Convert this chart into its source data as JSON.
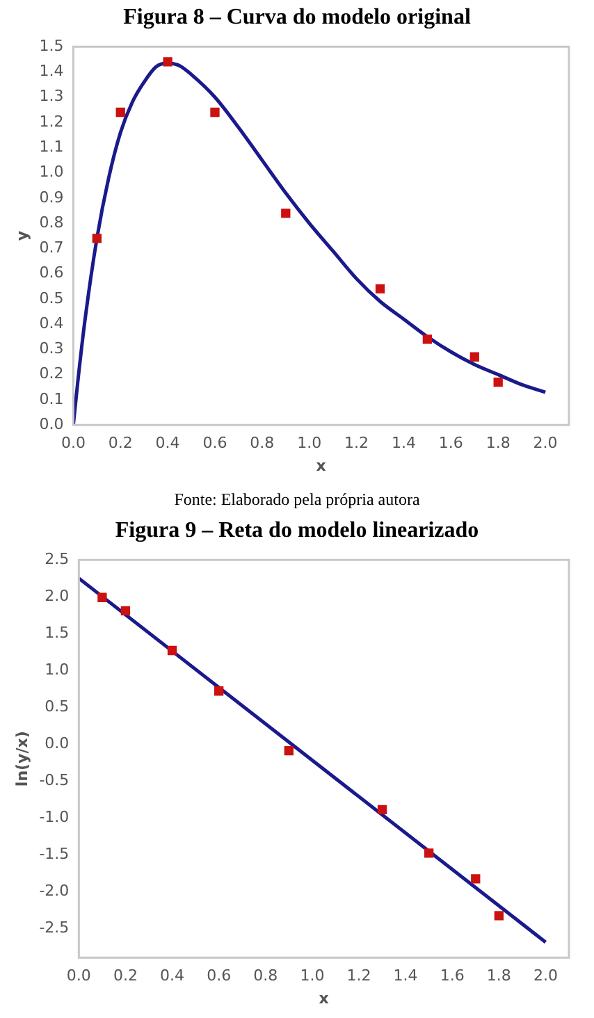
{
  "chart_data": [
    {
      "type": "scatter",
      "title": "Figura 8 – Curva do modelo original",
      "xlabel": "x",
      "ylabel": "y",
      "xlim": [
        0,
        2.1
      ],
      "ylim": [
        0,
        1.5
      ],
      "xticks": [
        {
          "value": 0,
          "label": "0.0"
        },
        {
          "value": 0.2,
          "label": "0.2"
        },
        {
          "value": 0.4,
          "label": "0.4"
        },
        {
          "value": 0.6,
          "label": "0.6"
        },
        {
          "value": 0.8,
          "label": "0.8"
        },
        {
          "value": 1,
          "label": "1.0"
        },
        {
          "value": 1.2,
          "label": "1.2"
        },
        {
          "value": 1.4,
          "label": "1.4"
        },
        {
          "value": 1.6,
          "label": "1.6"
        },
        {
          "value": 1.8,
          "label": "1.8"
        },
        {
          "value": 2,
          "label": "2.0"
        }
      ],
      "yticks": [
        {
          "value": 0,
          "label": "0.0"
        },
        {
          "value": 0.1,
          "label": "0.1"
        },
        {
          "value": 0.2,
          "label": "0.2"
        },
        {
          "value": 0.3,
          "label": "0.3"
        },
        {
          "value": 0.4,
          "label": "0.4"
        },
        {
          "value": 0.5,
          "label": "0.5"
        },
        {
          "value": 0.6,
          "label": "0.6"
        },
        {
          "value": 0.7,
          "label": "0.7"
        },
        {
          "value": 0.8,
          "label": "0.8"
        },
        {
          "value": 0.9,
          "label": "0.9"
        },
        {
          "value": 1,
          "label": "1.0"
        },
        {
          "value": 1.1,
          "label": "1.1"
        },
        {
          "value": 1.2,
          "label": "1.2"
        },
        {
          "value": 1.3,
          "label": "1.3"
        },
        {
          "value": 1.4,
          "label": "1.4"
        },
        {
          "value": 1.5,
          "label": "1.5"
        }
      ],
      "grid": false,
      "legend": false,
      "annotations": [
        "Fonte: Elaborado pela própria autora"
      ],
      "series": [
        {
          "type": "line",
          "color": "#1a1a8c",
          "marker": "none",
          "line_style": "solid",
          "x": [
            0,
            0.02,
            0.05,
            0.1,
            0.15,
            0.2,
            0.25,
            0.3,
            0.35,
            0.4,
            0.45,
            0.5,
            0.6,
            0.7,
            0.8,
            0.9,
            1.0,
            1.1,
            1.2,
            1.3,
            1.4,
            1.5,
            1.6,
            1.7,
            1.8,
            1.9,
            2.0
          ],
          "values": [
            0,
            0.18,
            0.42,
            0.74,
            0.98,
            1.16,
            1.28,
            1.36,
            1.42,
            1.435,
            1.425,
            1.39,
            1.3,
            1.18,
            1.05,
            0.92,
            0.8,
            0.69,
            0.58,
            0.49,
            0.42,
            0.35,
            0.29,
            0.24,
            0.2,
            0.16,
            0.13
          ]
        },
        {
          "type": "scatter",
          "color": "#cc1111",
          "marker": "square",
          "x": [
            0.1,
            0.2,
            0.4,
            0.6,
            0.9,
            1.3,
            1.5,
            1.7,
            1.8
          ],
          "values": [
            0.74,
            1.24,
            1.44,
            1.24,
            0.84,
            0.54,
            0.34,
            0.27,
            0.17
          ]
        }
      ]
    },
    {
      "type": "scatter",
      "title": "Figura 9 – Reta do modelo linearizado",
      "xlabel": "x",
      "ylabel": "ln(y/x)",
      "xlim": [
        0,
        2.1
      ],
      "ylim": [
        -2.9,
        2.5
      ],
      "xticks": [
        {
          "value": 0,
          "label": "0.0"
        },
        {
          "value": 0.2,
          "label": "0.2"
        },
        {
          "value": 0.4,
          "label": "0.4"
        },
        {
          "value": 0.6,
          "label": "0.6"
        },
        {
          "value": 0.8,
          "label": "0.8"
        },
        {
          "value": 1,
          "label": "1.0"
        },
        {
          "value": 1.2,
          "label": "1.2"
        },
        {
          "value": 1.4,
          "label": "1.4"
        },
        {
          "value": 1.6,
          "label": "1.6"
        },
        {
          "value": 1.8,
          "label": "1.8"
        },
        {
          "value": 2,
          "label": "2.0"
        }
      ],
      "yticks": [
        {
          "value": -2.5,
          "label": "-2.5"
        },
        {
          "value": -2,
          "label": "-2.0"
        },
        {
          "value": -1.5,
          "label": "-1.5"
        },
        {
          "value": -1,
          "label": "-1.0"
        },
        {
          "value": -0.5,
          "label": "-0.5"
        },
        {
          "value": 0,
          "label": "0.0"
        },
        {
          "value": 0.5,
          "label": "0.5"
        },
        {
          "value": 1,
          "label": "1.0"
        },
        {
          "value": 1.5,
          "label": "1.5"
        },
        {
          "value": 2,
          "label": "2.0"
        },
        {
          "value": 2.5,
          "label": "2.5"
        }
      ],
      "grid": false,
      "legend": false,
      "series": [
        {
          "type": "line",
          "color": "#1a1a8c",
          "marker": "none",
          "line_style": "solid",
          "x": [
            0,
            2.0
          ],
          "values": [
            2.25,
            -2.69
          ]
        },
        {
          "type": "scatter",
          "color": "#cc1111",
          "marker": "square",
          "x": [
            0.1,
            0.2,
            0.4,
            0.6,
            0.9,
            1.3,
            1.5,
            1.7,
            1.8
          ],
          "values": [
            1.99,
            1.81,
            1.27,
            0.72,
            -0.09,
            -0.89,
            -1.48,
            -1.83,
            -2.33
          ]
        }
      ]
    }
  ]
}
